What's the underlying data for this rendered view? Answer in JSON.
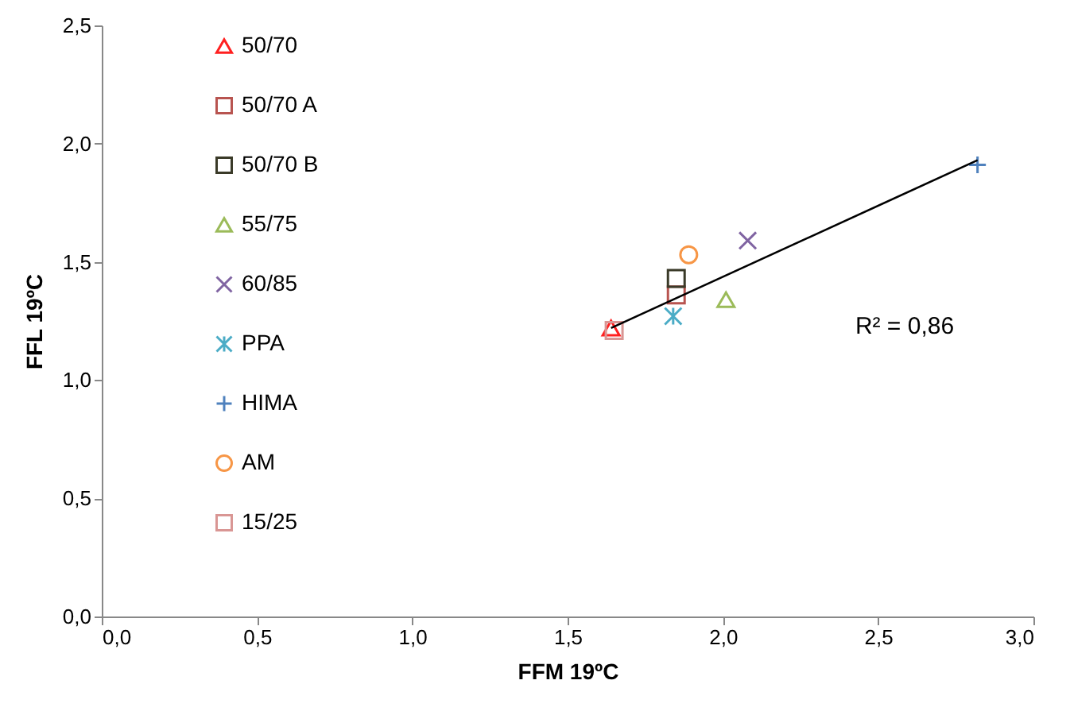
{
  "chart_data": {
    "type": "scatter",
    "xlabel": "FFM 19ºC",
    "ylabel": "FFL 19ºC",
    "xlim": [
      0,
      3
    ],
    "ylim": [
      0,
      2.5
    ],
    "xticks": [
      {
        "value": 0,
        "label": "0,0"
      },
      {
        "value": 0.5,
        "label": "0,5"
      },
      {
        "value": 1,
        "label": "1,0"
      },
      {
        "value": 1.5,
        "label": "1,5"
      },
      {
        "value": 2,
        "label": "2,0"
      },
      {
        "value": 2.5,
        "label": "2,5"
      },
      {
        "value": 3,
        "label": "3,0"
      }
    ],
    "yticks": [
      {
        "value": 0,
        "label": "0,0"
      },
      {
        "value": 0.5,
        "label": "0,5"
      },
      {
        "value": 1,
        "label": "1,0"
      },
      {
        "value": 1.5,
        "label": "1,5"
      },
      {
        "value": 2,
        "label": "2,0"
      },
      {
        "value": 2.5,
        "label": "2,5"
      }
    ],
    "legend": "top left",
    "grid": false,
    "annotations": [
      "R² = 0,86"
    ],
    "series": [
      {
        "name": "50/70",
        "color": "#ff2020",
        "marker": "triangle",
        "x": [
          1.64
        ],
        "values": [
          1.22
        ]
      },
      {
        "name": "50/70 A",
        "color": "#b85450",
        "marker": "square",
        "x": [
          1.85
        ],
        "values": [
          1.36
        ]
      },
      {
        "name": "50/70 B",
        "color": "#3a3a28",
        "marker": "square",
        "x": [
          1.85
        ],
        "values": [
          1.43
        ]
      },
      {
        "name": "55/75",
        "color": "#9bbb59",
        "marker": "triangle",
        "x": [
          2.01
        ],
        "values": [
          1.34
        ]
      },
      {
        "name": "60/85",
        "color": "#8064a2",
        "marker": "x",
        "x": [
          2.08
        ],
        "values": [
          1.59
        ]
      },
      {
        "name": "PPA",
        "color": "#4bacc6",
        "marker": "cross",
        "x": [
          1.84
        ],
        "values": [
          1.27
        ]
      },
      {
        "name": "HIMA",
        "color": "#4f81bd",
        "marker": "plus",
        "x": [
          2.82
        ],
        "values": [
          1.91
        ]
      },
      {
        "name": "AM",
        "color": "#f79646",
        "marker": "circle",
        "x": [
          1.89
        ],
        "values": [
          1.53
        ]
      },
      {
        "name": "15/25",
        "color": "#d99694",
        "marker": "square",
        "x": [
          1.65
        ],
        "values": [
          1.21
        ]
      },
      {
        "type": "line",
        "color": "#000000",
        "x": [
          1.64,
          2.82
        ],
        "values": [
          1.22,
          1.93
        ]
      }
    ]
  }
}
